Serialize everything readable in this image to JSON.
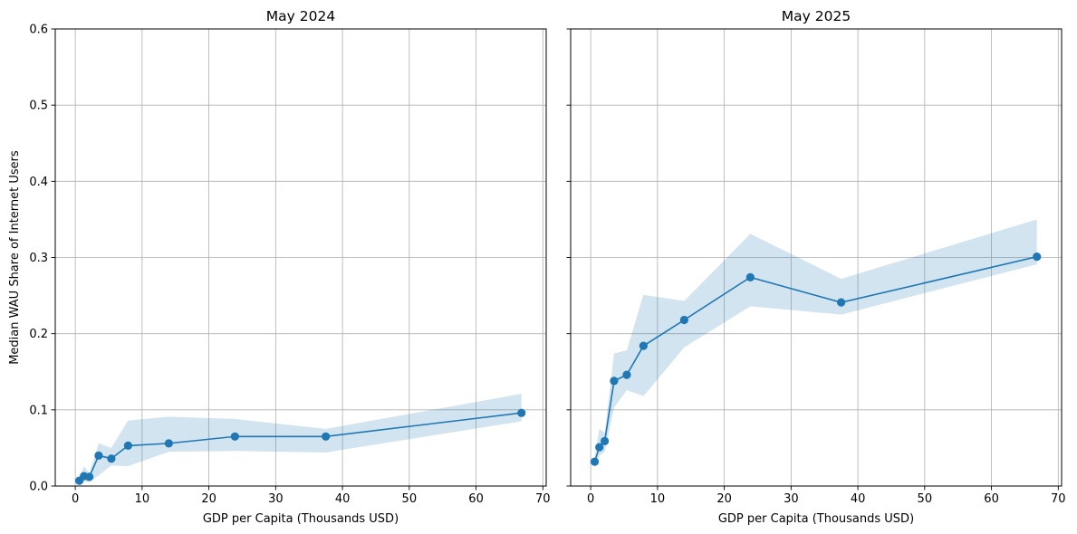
{
  "chart_data": {
    "type": "line",
    "ylabel": "Median WAU Share of Internet Users",
    "ylim": [
      0,
      0.6
    ],
    "yticks": [
      0,
      0.1,
      0.2,
      0.3,
      0.4,
      0.5,
      0.6
    ],
    "ytick_labels": [
      "0.0",
      "0.1",
      "0.2",
      "0.3",
      "0.4",
      "0.5",
      "0.6"
    ],
    "shared_y": true,
    "grid": true,
    "series_color": "#1f77b4",
    "band_color": "#1f77b4",
    "panels": [
      {
        "title": "May 2024",
        "xlabel": "GDP per Capita (Thousands USD)",
        "xlim": [
          -3,
          70.5
        ],
        "xticks": [
          0,
          10,
          20,
          30,
          40,
          50,
          60,
          70
        ],
        "x": [
          0.6,
          1.3,
          2.1,
          3.5,
          5.4,
          7.9,
          14.0,
          23.9,
          37.5,
          66.8
        ],
        "y": [
          0.007,
          0.013,
          0.012,
          0.04,
          0.036,
          0.053,
          0.056,
          0.065,
          0.065,
          0.096
        ],
        "band_low": [
          0.002,
          0.006,
          0.005,
          0.014,
          0.027,
          0.026,
          0.045,
          0.046,
          0.044,
          0.085
        ],
        "band_high": [
          0.01,
          0.026,
          0.017,
          0.056,
          0.05,
          0.086,
          0.091,
          0.088,
          0.075,
          0.121
        ]
      },
      {
        "title": "May 2025",
        "xlabel": "GDP per Capita (Thousands USD)",
        "xlim": [
          -3,
          70.5
        ],
        "xticks": [
          0,
          10,
          20,
          30,
          40,
          50,
          60,
          70
        ],
        "x": [
          0.6,
          1.3,
          2.1,
          3.5,
          5.4,
          7.9,
          14.0,
          23.9,
          37.5,
          66.8
        ],
        "y": [
          0.032,
          0.051,
          0.059,
          0.138,
          0.146,
          0.184,
          0.218,
          0.274,
          0.241,
          0.301
        ],
        "band_low": [
          0.025,
          0.04,
          0.045,
          0.103,
          0.126,
          0.118,
          0.182,
          0.236,
          0.225,
          0.291
        ],
        "band_high": [
          0.04,
          0.075,
          0.07,
          0.174,
          0.178,
          0.251,
          0.243,
          0.331,
          0.272,
          0.35
        ]
      }
    ]
  }
}
